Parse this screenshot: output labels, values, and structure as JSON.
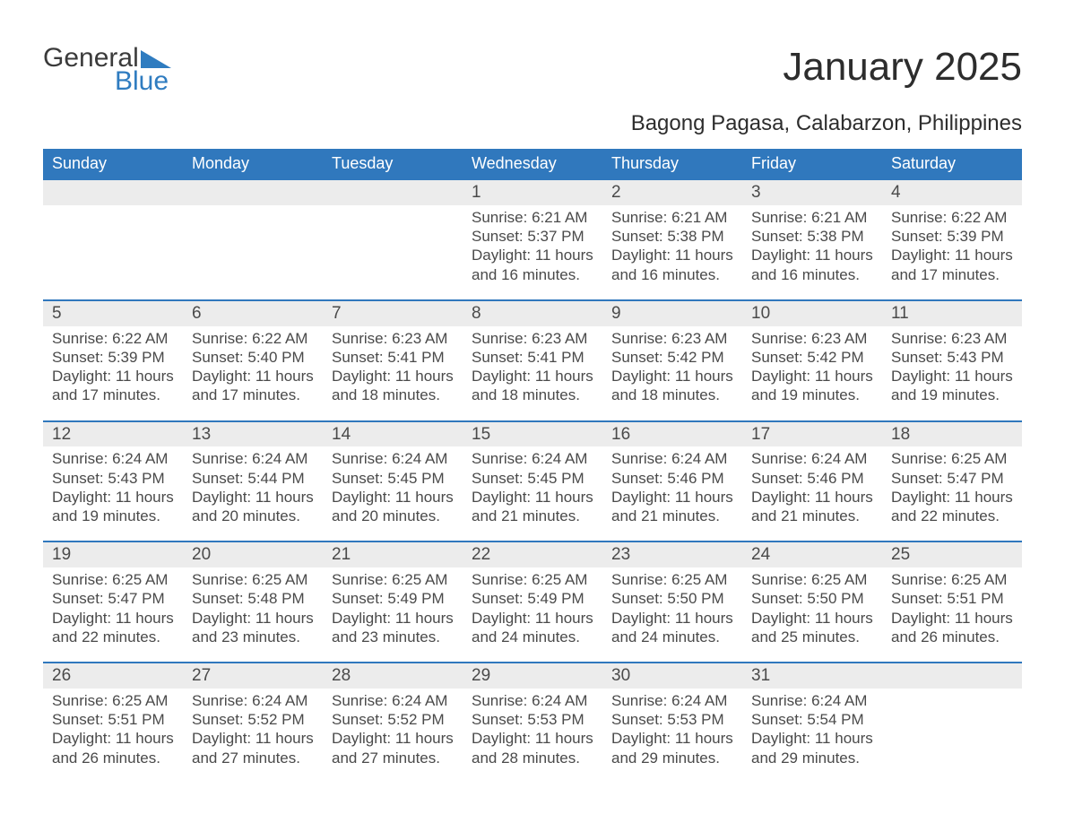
{
  "logo": {
    "line1": "General",
    "line2": "Blue",
    "triangle_color": "#2f7cc0"
  },
  "title": "January 2025",
  "subtitle": "Bagong Pagasa, Calabarzon, Philippines",
  "colors": {
    "header_bg": "#3078bd",
    "header_text": "#ffffff",
    "row_stripe": "#ececec",
    "divider": "#3078bd",
    "body_text": "#4a4a4a",
    "logo_blue": "#2f7cc0",
    "background": "#ffffff"
  },
  "typography": {
    "title_fontsize": 44,
    "subtitle_fontsize": 24,
    "header_fontsize": 18,
    "daynum_fontsize": 19,
    "details_fontsize": 17,
    "logo_fontsize": 30
  },
  "day_headers": [
    "Sunday",
    "Monday",
    "Tuesday",
    "Wednesday",
    "Thursday",
    "Friday",
    "Saturday"
  ],
  "weeks": [
    {
      "days": [
        null,
        null,
        null,
        {
          "n": "1",
          "sunrise": "6:21 AM",
          "sunset": "5:37 PM",
          "daylight_h": 11,
          "daylight_m": 16
        },
        {
          "n": "2",
          "sunrise": "6:21 AM",
          "sunset": "5:38 PM",
          "daylight_h": 11,
          "daylight_m": 16
        },
        {
          "n": "3",
          "sunrise": "6:21 AM",
          "sunset": "5:38 PM",
          "daylight_h": 11,
          "daylight_m": 16
        },
        {
          "n": "4",
          "sunrise": "6:22 AM",
          "sunset": "5:39 PM",
          "daylight_h": 11,
          "daylight_m": 17
        }
      ]
    },
    {
      "days": [
        {
          "n": "5",
          "sunrise": "6:22 AM",
          "sunset": "5:39 PM",
          "daylight_h": 11,
          "daylight_m": 17
        },
        {
          "n": "6",
          "sunrise": "6:22 AM",
          "sunset": "5:40 PM",
          "daylight_h": 11,
          "daylight_m": 17
        },
        {
          "n": "7",
          "sunrise": "6:23 AM",
          "sunset": "5:41 PM",
          "daylight_h": 11,
          "daylight_m": 18
        },
        {
          "n": "8",
          "sunrise": "6:23 AM",
          "sunset": "5:41 PM",
          "daylight_h": 11,
          "daylight_m": 18
        },
        {
          "n": "9",
          "sunrise": "6:23 AM",
          "sunset": "5:42 PM",
          "daylight_h": 11,
          "daylight_m": 18
        },
        {
          "n": "10",
          "sunrise": "6:23 AM",
          "sunset": "5:42 PM",
          "daylight_h": 11,
          "daylight_m": 19
        },
        {
          "n": "11",
          "sunrise": "6:23 AM",
          "sunset": "5:43 PM",
          "daylight_h": 11,
          "daylight_m": 19
        }
      ]
    },
    {
      "days": [
        {
          "n": "12",
          "sunrise": "6:24 AM",
          "sunset": "5:43 PM",
          "daylight_h": 11,
          "daylight_m": 19
        },
        {
          "n": "13",
          "sunrise": "6:24 AM",
          "sunset": "5:44 PM",
          "daylight_h": 11,
          "daylight_m": 20
        },
        {
          "n": "14",
          "sunrise": "6:24 AM",
          "sunset": "5:45 PM",
          "daylight_h": 11,
          "daylight_m": 20
        },
        {
          "n": "15",
          "sunrise": "6:24 AM",
          "sunset": "5:45 PM",
          "daylight_h": 11,
          "daylight_m": 21
        },
        {
          "n": "16",
          "sunrise": "6:24 AM",
          "sunset": "5:46 PM",
          "daylight_h": 11,
          "daylight_m": 21
        },
        {
          "n": "17",
          "sunrise": "6:24 AM",
          "sunset": "5:46 PM",
          "daylight_h": 11,
          "daylight_m": 21
        },
        {
          "n": "18",
          "sunrise": "6:25 AM",
          "sunset": "5:47 PM",
          "daylight_h": 11,
          "daylight_m": 22
        }
      ]
    },
    {
      "days": [
        {
          "n": "19",
          "sunrise": "6:25 AM",
          "sunset": "5:47 PM",
          "daylight_h": 11,
          "daylight_m": 22
        },
        {
          "n": "20",
          "sunrise": "6:25 AM",
          "sunset": "5:48 PM",
          "daylight_h": 11,
          "daylight_m": 23
        },
        {
          "n": "21",
          "sunrise": "6:25 AM",
          "sunset": "5:49 PM",
          "daylight_h": 11,
          "daylight_m": 23
        },
        {
          "n": "22",
          "sunrise": "6:25 AM",
          "sunset": "5:49 PM",
          "daylight_h": 11,
          "daylight_m": 24
        },
        {
          "n": "23",
          "sunrise": "6:25 AM",
          "sunset": "5:50 PM",
          "daylight_h": 11,
          "daylight_m": 24
        },
        {
          "n": "24",
          "sunrise": "6:25 AM",
          "sunset": "5:50 PM",
          "daylight_h": 11,
          "daylight_m": 25
        },
        {
          "n": "25",
          "sunrise": "6:25 AM",
          "sunset": "5:51 PM",
          "daylight_h": 11,
          "daylight_m": 26
        }
      ]
    },
    {
      "days": [
        {
          "n": "26",
          "sunrise": "6:25 AM",
          "sunset": "5:51 PM",
          "daylight_h": 11,
          "daylight_m": 26
        },
        {
          "n": "27",
          "sunrise": "6:24 AM",
          "sunset": "5:52 PM",
          "daylight_h": 11,
          "daylight_m": 27
        },
        {
          "n": "28",
          "sunrise": "6:24 AM",
          "sunset": "5:52 PM",
          "daylight_h": 11,
          "daylight_m": 27
        },
        {
          "n": "29",
          "sunrise": "6:24 AM",
          "sunset": "5:53 PM",
          "daylight_h": 11,
          "daylight_m": 28
        },
        {
          "n": "30",
          "sunrise": "6:24 AM",
          "sunset": "5:53 PM",
          "daylight_h": 11,
          "daylight_m": 29
        },
        {
          "n": "31",
          "sunrise": "6:24 AM",
          "sunset": "5:54 PM",
          "daylight_h": 11,
          "daylight_m": 29
        },
        null
      ]
    }
  ],
  "labels": {
    "sunrise": "Sunrise:",
    "sunset": "Sunset:",
    "daylight_prefix": "Daylight:",
    "hours_word": "hours",
    "and_word": "and",
    "minutes_word": "minutes."
  }
}
